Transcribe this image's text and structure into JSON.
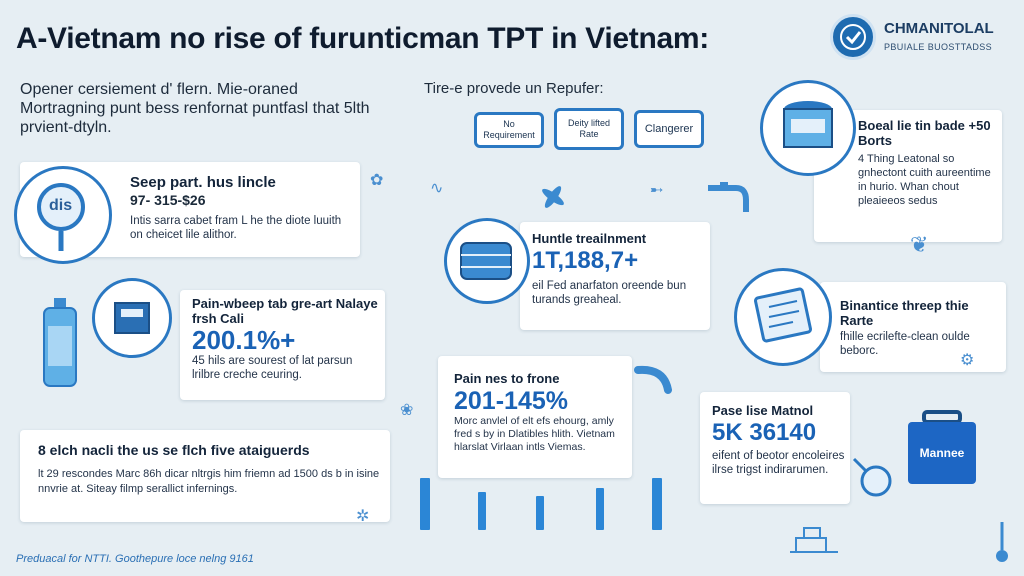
{
  "header": {
    "title": "A-Vietnam no rise of furunticman TPT in Vietnam:"
  },
  "logo": {
    "name": "CHMANITOLAL",
    "subtitle": "PBUIALE BUOSTTADSS"
  },
  "intro": {
    "text": "Opener cersiement d' flern. Mie-oraned Mortragning punt bess renfornat puntfasl that 5lth prvient-dtyln."
  },
  "subhead": {
    "text": "Tire-e provede un Repufer:"
  },
  "bubbles": [
    {
      "label": "No Requirement"
    },
    {
      "label": "Deity lifted Rate"
    },
    {
      "label": "Clangerer"
    }
  ],
  "cards": {
    "card1": {
      "title": "Seep part. hus lincle",
      "stat": "97- 315-$26",
      "body": "Intis sarra cabet fram L he the diote luuith on cheicet lile alithor.",
      "icon_label": "dis"
    },
    "card2": {
      "title": "Pain-wbeep tab gre-art Nalaye frsh Cali",
      "stat": "200.1%+",
      "body": "45 hils are sourest of lat parsun lrilbre creche ceuring."
    },
    "card3": {
      "title": "8 elch nacli the us se flch five ataiguerds",
      "body": "lt 29 rescondes Marc 86h dicar nltrgis him friemn ad 1500 ds b in isine nnvrie at. Siteay filmp serallict infernings."
    },
    "card4": {
      "title": "Huntle treailnment",
      "stat": "1T,188,7+",
      "body": "eil Fed anarfaton oreende bun turands greaheal."
    },
    "card5": {
      "title": "Pain nes to frone",
      "stat": "201-145%",
      "body": "Morc anvlel of elt efs ehourg, amly fred s by in Dlatibles hlith. Vietnam hlarslat Virlaan intls Viemas."
    },
    "card6": {
      "title": "Boeal lie tin bade +50 Borts",
      "body": "4 Thing Leatonal so gnhectont cuith aureentime in hurio. Whan chout pleaieeos sedus"
    },
    "card7": {
      "title": "Binantice threep thie Rarte",
      "body": "fhille ecrilefte-clean oulde beborc."
    },
    "card8": {
      "title": "Pase lise Matnol",
      "stat": "5K 36140",
      "body": "eifent of beotor encoleires ilrse trigst indirarumen."
    }
  },
  "box_label": "Mannee",
  "footer": {
    "text": "Preduacal for NTTI. Goothepure loce nelng 9161"
  },
  "colors": {
    "accent": "#1a62b5",
    "background": "#e6eef3",
    "outline": "#2a78c2"
  },
  "icons": [
    "medal-icon",
    "magnifier-icon",
    "bottle-icon",
    "package-icon",
    "jar-icon",
    "drum-icon",
    "document-icon",
    "pipe-icon",
    "box-icon",
    "faucet-icon"
  ]
}
